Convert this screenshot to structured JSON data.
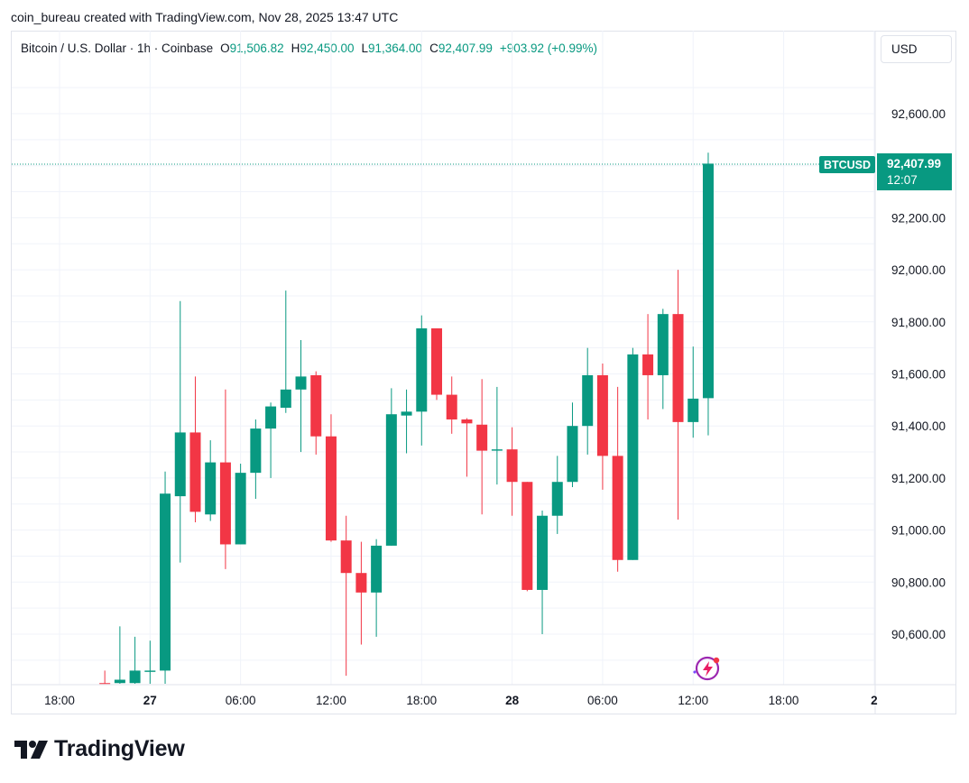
{
  "header": {
    "note": "coin_bureau created with TradingView.com, Nov 28, 2025 13:47 UTC"
  },
  "legend": {
    "symbol": "Bitcoin / U.S. Dollar · 1h · Coinbase",
    "o_label": "O",
    "o_value": "91,506.82",
    "h_label": "H",
    "h_value": "92,450.00",
    "l_label": "L",
    "l_value": "91,364.00",
    "c_label": "C",
    "c_value": "92,407.99",
    "change": "+903.92 (+0.99%)"
  },
  "currency_button": "USD",
  "price_tag": {
    "symbol": "BTCUSD",
    "price": "92,407.99",
    "countdown": "12:07"
  },
  "brand": {
    "name": "TradingView",
    "logo_icon": "tradingview-logo-icon"
  },
  "watermark_icon": "lightning-badge-icon",
  "colors": {
    "up": "#089981",
    "down": "#f23645",
    "grid": "#f0f3fa",
    "text": "#131722"
  },
  "chart_data": {
    "type": "candlestick",
    "y_ticks": [
      92600,
      92400,
      92200,
      92000,
      91800,
      91600,
      91400,
      91200,
      91000,
      90800,
      90600
    ],
    "y_tick_labels": [
      "92,600.00",
      "92,400.00",
      "92,200.00",
      "92,000.00",
      "91,800.00",
      "91,600.00",
      "91,400.00",
      "91,200.00",
      "91,000.00",
      "90,800.00",
      "90,600.00"
    ],
    "x_labels": [
      {
        "text": "18:00",
        "bold": false,
        "pos": 0
      },
      {
        "text": "27",
        "bold": true,
        "pos": 6
      },
      {
        "text": "06:00",
        "bold": false,
        "pos": 12
      },
      {
        "text": "12:00",
        "bold": false,
        "pos": 18
      },
      {
        "text": "18:00",
        "bold": false,
        "pos": 24
      },
      {
        "text": "28",
        "bold": true,
        "pos": 30
      },
      {
        "text": "06:00",
        "bold": false,
        "pos": 36
      },
      {
        "text": "12:00",
        "bold": false,
        "pos": 42
      },
      {
        "text": "18:00",
        "bold": false,
        "pos": 48
      },
      {
        "text": "2",
        "bold": true,
        "pos": 54
      }
    ],
    "candles": [
      {
        "i": 3,
        "o": 90412,
        "h": 90460,
        "l": 90400,
        "c": 90406
      },
      {
        "i": 4,
        "o": 90412,
        "h": 90630,
        "l": 90400,
        "c": 90425
      },
      {
        "i": 5,
        "o": 90412,
        "h": 90590,
        "l": 90400,
        "c": 90460
      },
      {
        "i": 6,
        "o": 90455,
        "h": 90575,
        "l": 90400,
        "c": 90460
      },
      {
        "i": 7,
        "o": 90460,
        "h": 91225,
        "l": 90400,
        "c": 91140
      },
      {
        "i": 8,
        "o": 91130,
        "h": 91880,
        "l": 90875,
        "c": 91375
      },
      {
        "i": 9,
        "o": 91375,
        "h": 91590,
        "l": 91030,
        "c": 91070
      },
      {
        "i": 10,
        "o": 91060,
        "h": 91345,
        "l": 91035,
        "c": 91260
      },
      {
        "i": 11,
        "o": 91260,
        "h": 91540,
        "l": 90850,
        "c": 90945
      },
      {
        "i": 12,
        "o": 90945,
        "h": 91255,
        "l": 90945,
        "c": 91220
      },
      {
        "i": 13,
        "o": 91220,
        "h": 91425,
        "l": 91120,
        "c": 91390
      },
      {
        "i": 14,
        "o": 91390,
        "h": 91490,
        "l": 91200,
        "c": 91475
      },
      {
        "i": 15,
        "o": 91470,
        "h": 91920,
        "l": 91450,
        "c": 91540
      },
      {
        "i": 16,
        "o": 91540,
        "h": 91730,
        "l": 91300,
        "c": 91590
      },
      {
        "i": 17,
        "o": 91595,
        "h": 91610,
        "l": 91290,
        "c": 91360
      },
      {
        "i": 18,
        "o": 91360,
        "h": 91445,
        "l": 90955,
        "c": 90960
      },
      {
        "i": 19,
        "o": 90960,
        "h": 91055,
        "l": 90440,
        "c": 90835
      },
      {
        "i": 20,
        "o": 90835,
        "h": 90955,
        "l": 90560,
        "c": 90760
      },
      {
        "i": 21,
        "o": 90760,
        "h": 90965,
        "l": 90590,
        "c": 90940
      },
      {
        "i": 22,
        "o": 90940,
        "h": 91545,
        "l": 90940,
        "c": 91445
      },
      {
        "i": 23,
        "o": 91440,
        "h": 91540,
        "l": 91295,
        "c": 91455
      },
      {
        "i": 24,
        "o": 91455,
        "h": 91825,
        "l": 91325,
        "c": 91775
      },
      {
        "i": 25,
        "o": 91775,
        "h": 91775,
        "l": 91500,
        "c": 91520
      },
      {
        "i": 26,
        "o": 91520,
        "h": 91590,
        "l": 91370,
        "c": 91425
      },
      {
        "i": 27,
        "o": 91425,
        "h": 91430,
        "l": 91205,
        "c": 91410
      },
      {
        "i": 28,
        "o": 91405,
        "h": 91580,
        "l": 91060,
        "c": 91305
      },
      {
        "i": 29,
        "o": 91305,
        "h": 91550,
        "l": 91175,
        "c": 91310
      },
      {
        "i": 30,
        "o": 91310,
        "h": 91395,
        "l": 91055,
        "c": 91185
      },
      {
        "i": 31,
        "o": 91185,
        "h": 91185,
        "l": 90765,
        "c": 90770
      },
      {
        "i": 32,
        "o": 90770,
        "h": 91075,
        "l": 90600,
        "c": 91055
      },
      {
        "i": 33,
        "o": 91055,
        "h": 91285,
        "l": 90985,
        "c": 91185
      },
      {
        "i": 34,
        "o": 91185,
        "h": 91490,
        "l": 91165,
        "c": 91400
      },
      {
        "i": 35,
        "o": 91400,
        "h": 91700,
        "l": 91290,
        "c": 91595
      },
      {
        "i": 36,
        "o": 91595,
        "h": 91640,
        "l": 91155,
        "c": 91285
      },
      {
        "i": 37,
        "o": 91285,
        "h": 91550,
        "l": 90840,
        "c": 90885
      },
      {
        "i": 38,
        "o": 90885,
        "h": 91700,
        "l": 90885,
        "c": 91675
      },
      {
        "i": 39,
        "o": 91675,
        "h": 91830,
        "l": 91425,
        "c": 91595
      },
      {
        "i": 40,
        "o": 91595,
        "h": 91850,
        "l": 91465,
        "c": 91830
      },
      {
        "i": 41,
        "o": 91830,
        "h": 92000,
        "l": 91040,
        "c": 91415
      },
      {
        "i": 42,
        "o": 91415,
        "h": 91705,
        "l": 91355,
        "c": 91505
      },
      {
        "i": 43,
        "o": 91506.82,
        "h": 92450,
        "l": 91364,
        "c": 92407.99
      }
    ]
  }
}
